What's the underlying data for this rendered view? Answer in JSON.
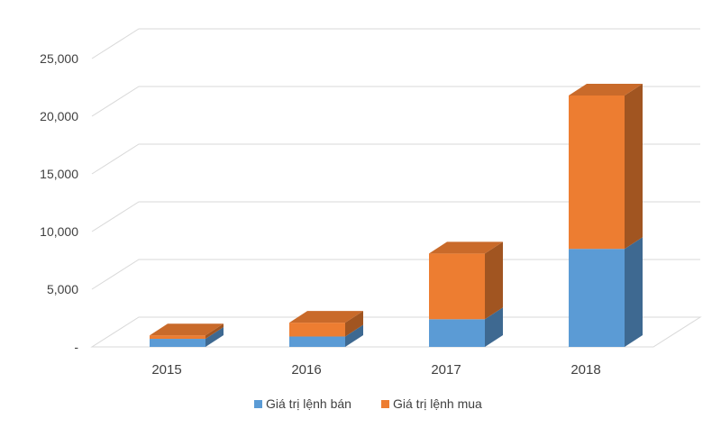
{
  "chart_data": {
    "type": "bar",
    "stacked": true,
    "three_d": true,
    "categories": [
      "2015",
      "2016",
      "2017",
      "2018"
    ],
    "series": [
      {
        "name": "Giá trị lệnh bán",
        "values": [
          700,
          900,
          2400,
          8500
        ],
        "color": "#5b9bd5"
      },
      {
        "name": "Giá trị lệnh mua",
        "values": [
          300,
          1200,
          5700,
          13300
        ],
        "color": "#ed7d31"
      }
    ],
    "y_ticks": [
      {
        "value": 0,
        "label": "-"
      },
      {
        "value": 5000,
        "label": "5,000"
      },
      {
        "value": 10000,
        "label": "10,000"
      },
      {
        "value": 15000,
        "label": "15,000"
      },
      {
        "value": 20000,
        "label": "20,000"
      },
      {
        "value": 25000,
        "label": "25,000"
      }
    ],
    "ylim": [
      0,
      25000
    ],
    "grid": true,
    "legend_position": "bottom"
  }
}
